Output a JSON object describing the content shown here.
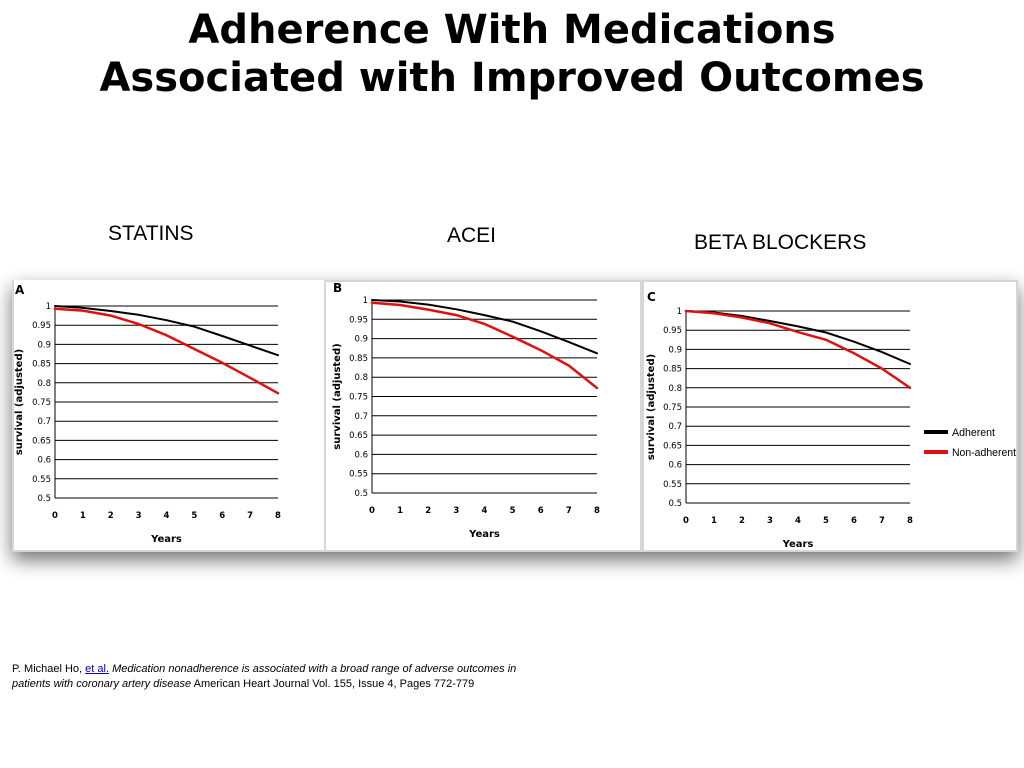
{
  "slide": {
    "title_line1": "Adherence With Medications",
    "title_line2": "Associated with Improved Outcomes"
  },
  "labels": {
    "statins": "STATINS",
    "acei": "ACEI",
    "beta_blockers": "BETA BLOCKERS"
  },
  "colors": {
    "adherent": "#000000",
    "non_adherent": "#e01010",
    "grid": "#000000"
  },
  "citation": {
    "author": "P. Michael Ho, ",
    "et_al": "et al.",
    "title_part1": "Medication nonadherence is associated with a broad range of adverse outcomes in",
    "title_part2": "patients with coronary artery disease",
    "journal": " American Heart Journal Vol. 155, Issue 4, Pages 772-779"
  },
  "chart_data": [
    {
      "type": "line",
      "panel": "A",
      "xlabel": "Years",
      "ylabel": "survival (adjusted)",
      "xlim": [
        0,
        8
      ],
      "ylim": [
        0.5,
        1
      ],
      "x_ticks": [
        "0",
        "1",
        "2",
        "3",
        "4",
        "5",
        "6",
        "7",
        "8"
      ],
      "y_ticks": [
        "1",
        "0.95",
        "0.9",
        "0.85",
        "0.8",
        "0.75",
        "0.7",
        "0.65",
        "0.6",
        "0.55",
        "0.5"
      ],
      "grid": true,
      "series": [
        {
          "name": "",
          "color": "#000000",
          "x": [
            0,
            1,
            2,
            3,
            4,
            5,
            6,
            7,
            8
          ],
          "y": [
            1.0,
            0.995,
            0.987,
            0.977,
            0.963,
            0.946,
            0.922,
            0.897,
            0.872
          ]
        },
        {
          "name": "",
          "color": "#e01010",
          "x": [
            0,
            1,
            2,
            3,
            4,
            5,
            6,
            7,
            8
          ],
          "y": [
            0.993,
            0.988,
            0.975,
            0.953,
            0.924,
            0.888,
            0.852,
            0.813,
            0.773
          ]
        }
      ]
    },
    {
      "type": "line",
      "panel": "B",
      "xlabel": "Years",
      "ylabel": "survival (adjusted)",
      "xlim": [
        0,
        8
      ],
      "ylim": [
        0.5,
        1
      ],
      "x_ticks": [
        "0",
        "1",
        "2",
        "3",
        "4",
        "5",
        "6",
        "7",
        "8"
      ],
      "y_ticks": [
        "1",
        "0.95",
        "0.9",
        "0.85",
        "0.8",
        "0.75",
        "0.7",
        "0.65",
        "0.6",
        "0.55",
        "0.5"
      ],
      "grid": true,
      "series": [
        {
          "name": "",
          "color": "#000000",
          "x": [
            0,
            1,
            2,
            3,
            4,
            5,
            6,
            7,
            8
          ],
          "y": [
            1.0,
            0.996,
            0.988,
            0.976,
            0.961,
            0.944,
            0.919,
            0.891,
            0.862
          ]
        },
        {
          "name": "",
          "color": "#e01010",
          "x": [
            0,
            1,
            2,
            3,
            4,
            5,
            6,
            7,
            8
          ],
          "y": [
            0.993,
            0.987,
            0.975,
            0.961,
            0.938,
            0.905,
            0.87,
            0.83,
            0.772
          ]
        }
      ]
    },
    {
      "type": "line",
      "panel": "C",
      "xlabel": "Years",
      "ylabel": "survival (adjusted)",
      "xlim": [
        0,
        8
      ],
      "ylim": [
        0.5,
        1
      ],
      "x_ticks": [
        "0",
        "1",
        "2",
        "3",
        "4",
        "5",
        "6",
        "7",
        "8"
      ],
      "y_ticks": [
        "1",
        "0.95",
        "0.9",
        "0.85",
        "0.8",
        "0.75",
        "0.7",
        "0.65",
        "0.6",
        "0.55",
        "0.5"
      ],
      "grid": true,
      "legend_position": "right",
      "series": [
        {
          "name": "Adherent",
          "color": "#000000",
          "x": [
            0,
            1,
            2,
            3,
            4,
            5,
            6,
            7,
            8
          ],
          "y": [
            1.0,
            0.996,
            0.987,
            0.974,
            0.96,
            0.944,
            0.92,
            0.893,
            0.862
          ]
        },
        {
          "name": "Non-adherent",
          "color": "#e01010",
          "x": [
            0,
            1,
            2,
            3,
            4,
            5,
            6,
            7,
            8
          ],
          "y": [
            1.0,
            0.994,
            0.983,
            0.968,
            0.945,
            0.925,
            0.89,
            0.85,
            0.8
          ]
        }
      ]
    }
  ]
}
